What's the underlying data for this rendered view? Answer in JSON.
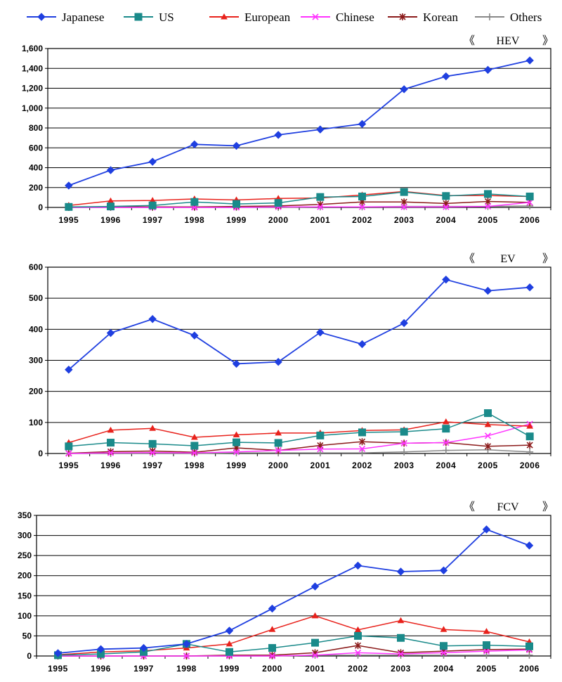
{
  "legend": {
    "items": [
      {
        "name": "Japanese",
        "color": "#1f3fe0",
        "marker": "diamond"
      },
      {
        "name": "US",
        "color": "#1a8a8a",
        "marker": "square"
      },
      {
        "name": "European",
        "color": "#e8221c",
        "marker": "triangle"
      },
      {
        "name": "Chinese",
        "color": "#ff33ff",
        "marker": "x"
      },
      {
        "name": "Korean",
        "color": "#8b1a1a",
        "marker": "star"
      },
      {
        "name": "Others",
        "color": "#888888",
        "marker": "plus"
      }
    ]
  },
  "chart_data": [
    {
      "type": "line",
      "tag": "HEV",
      "tag_open": "《",
      "tag_close": "》",
      "categories": [
        "1995",
        "1996",
        "1997",
        "1998",
        "1999",
        "2000",
        "2001",
        "2002",
        "2003",
        "2004",
        "2005",
        "2006"
      ],
      "ylim": [
        0,
        1600
      ],
      "yticks": [
        0,
        200,
        400,
        600,
        800,
        1000,
        1200,
        1400,
        1600
      ],
      "ytick_labels": [
        "0",
        "200",
        "400",
        "600",
        "800",
        "1,000",
        "1,200",
        "1,400",
        "1,600"
      ],
      "series": [
        {
          "name": "Japanese",
          "values": [
            220,
            375,
            460,
            635,
            620,
            730,
            785,
            840,
            1190,
            1320,
            1385,
            1480
          ]
        },
        {
          "name": "US",
          "values": [
            5,
            10,
            20,
            55,
            35,
            45,
            105,
            110,
            155,
            115,
            135,
            110
          ]
        },
        {
          "name": "European",
          "values": [
            20,
            65,
            70,
            85,
            75,
            90,
            95,
            125,
            160,
            120,
            120,
            110
          ]
        },
        {
          "name": "Chinese",
          "values": [
            0,
            0,
            0,
            0,
            0,
            5,
            5,
            5,
            5,
            5,
            10,
            50
          ]
        },
        {
          "name": "Korean",
          "values": [
            0,
            5,
            5,
            5,
            10,
            15,
            30,
            55,
            55,
            40,
            60,
            50
          ]
        },
        {
          "name": "Others",
          "values": [
            0,
            0,
            0,
            0,
            0,
            0,
            5,
            5,
            10,
            10,
            10,
            15
          ]
        }
      ]
    },
    {
      "type": "line",
      "tag": "EV",
      "tag_open": "《",
      "tag_close": "》",
      "categories": [
        "1995",
        "1996",
        "1997",
        "1998",
        "1999",
        "2000",
        "2001",
        "2002",
        "2003",
        "2004",
        "2005",
        "2006"
      ],
      "ylim": [
        0,
        600
      ],
      "yticks": [
        0,
        100,
        200,
        300,
        400,
        500,
        600
      ],
      "ytick_labels": [
        "0",
        "100",
        "200",
        "300",
        "400",
        "500",
        "600"
      ],
      "series": [
        {
          "name": "Japanese",
          "values": [
            270,
            388,
            433,
            380,
            289,
            295,
            390,
            352,
            420,
            560,
            524,
            535
          ]
        },
        {
          "name": "US",
          "values": [
            23,
            35,
            31,
            25,
            36,
            34,
            58,
            68,
            70,
            80,
            130,
            55
          ]
        },
        {
          "name": "European",
          "values": [
            35,
            75,
            81,
            52,
            60,
            66,
            66,
            74,
            76,
            102,
            93,
            88
          ]
        },
        {
          "name": "Chinese",
          "values": [
            0,
            2,
            3,
            2,
            5,
            10,
            14,
            15,
            33,
            35,
            57,
            95
          ]
        },
        {
          "name": "Korean",
          "values": [
            1,
            6,
            8,
            4,
            18,
            10,
            26,
            38,
            33,
            35,
            23,
            27
          ]
        },
        {
          "name": "Others",
          "values": [
            0,
            0,
            0,
            0,
            2,
            2,
            2,
            2,
            5,
            10,
            12,
            5
          ]
        }
      ]
    },
    {
      "type": "line",
      "tag": "FCV",
      "tag_open": "《",
      "tag_close": "》",
      "categories": [
        "1995",
        "1996",
        "1997",
        "1998",
        "1999",
        "2000",
        "2001",
        "2002",
        "2003",
        "2004",
        "2005",
        "2006"
      ],
      "ylim": [
        0,
        350
      ],
      "yticks": [
        0,
        50,
        100,
        150,
        200,
        250,
        300,
        350
      ],
      "ytick_labels": [
        "0",
        "50",
        "100",
        "150",
        "200",
        "250",
        "300",
        "350"
      ],
      "series": [
        {
          "name": "Japanese",
          "values": [
            7,
            17,
            20,
            30,
            63,
            118,
            173,
            225,
            210,
            213,
            315,
            275
          ]
        },
        {
          "name": "US",
          "values": [
            2,
            5,
            10,
            30,
            10,
            20,
            33,
            50,
            45,
            25,
            27,
            24
          ]
        },
        {
          "name": "European",
          "values": [
            3,
            10,
            13,
            20,
            30,
            66,
            100,
            65,
            88,
            66,
            61,
            35
          ]
        },
        {
          "name": "Chinese",
          "values": [
            0,
            0,
            0,
            0,
            0,
            0,
            2,
            8,
            5,
            8,
            12,
            15
          ]
        },
        {
          "name": "Korean",
          "values": [
            0,
            0,
            0,
            0,
            2,
            2,
            8,
            26,
            8,
            12,
            16,
            17
          ]
        },
        {
          "name": "Others",
          "values": [
            0,
            0,
            0,
            0,
            0,
            0,
            2,
            2,
            2,
            2,
            2,
            2
          ]
        }
      ]
    }
  ]
}
